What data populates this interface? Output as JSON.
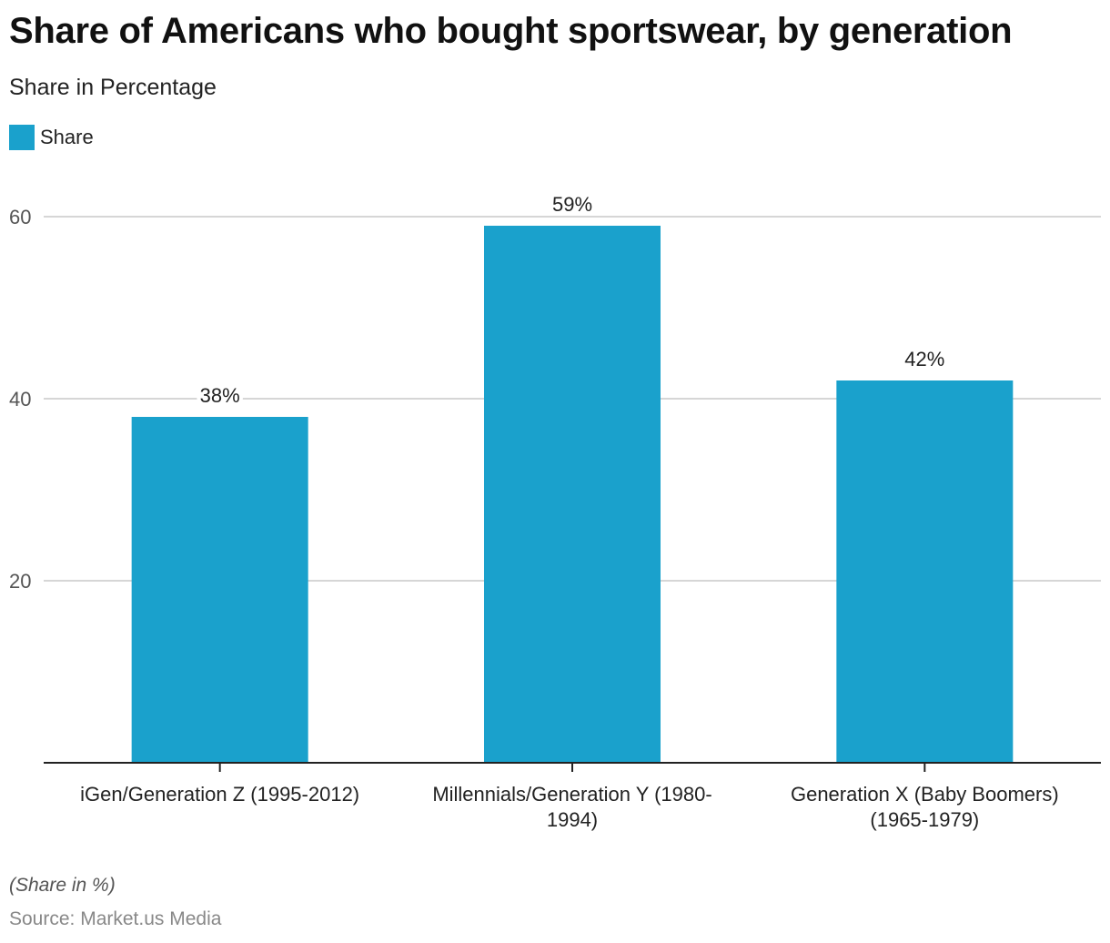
{
  "chart_data": {
    "type": "bar",
    "title": "Share of Americans who bought sportswear, by generation",
    "subtitle": "Share in Percentage",
    "categories": [
      [
        "iGen/Generation Z (1995-2012)"
      ],
      [
        "Millennials/Generation Y (1980-",
        "1994)"
      ],
      [
        "Generation X (Baby Boomers)",
        "(1965-1979)"
      ]
    ],
    "series": [
      {
        "name": "Share",
        "values": [
          38,
          59,
          42
        ],
        "labels": [
          "38%",
          "59%",
          "42%"
        ],
        "color": "#1aa1cc"
      }
    ],
    "ylim": [
      0,
      60
    ],
    "yticks": [
      20,
      40,
      60
    ],
    "ytick_labels": [
      "20",
      "40",
      "60"
    ],
    "grid": true,
    "legend": "top-left",
    "xlabel": "",
    "ylabel": ""
  },
  "footnote": "(Share in %)",
  "source": "Source: Market.us Media"
}
